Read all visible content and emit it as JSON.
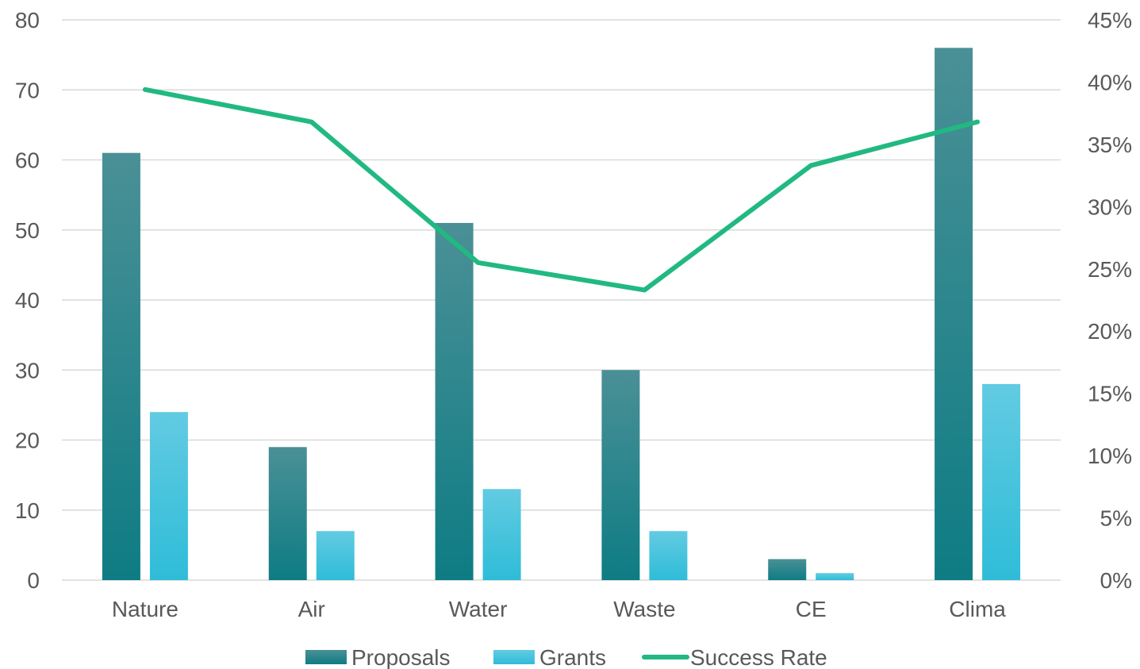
{
  "chart_data": {
    "type": "bar",
    "categories": [
      "Nature",
      "Air",
      "Water",
      "Waste",
      "CE",
      "Clima"
    ],
    "series": [
      {
        "name": "Proposals",
        "type": "bar",
        "axis": "left",
        "values": [
          61,
          19,
          51,
          30,
          3,
          76
        ]
      },
      {
        "name": "Grants",
        "type": "bar",
        "axis": "left",
        "values": [
          24,
          7,
          13,
          7,
          1,
          28
        ]
      },
      {
        "name": "Success Rate",
        "type": "line",
        "axis": "right",
        "values": [
          0.394,
          0.368,
          0.255,
          0.233,
          0.333,
          0.368
        ]
      }
    ],
    "y_left": {
      "min": 0,
      "max": 80,
      "step": 10,
      "ticks": [
        "0",
        "10",
        "20",
        "30",
        "40",
        "50",
        "60",
        "70",
        "80"
      ]
    },
    "y_right": {
      "min": 0,
      "max": 0.45,
      "step": 0.05,
      "ticks": [
        "0%",
        "5%",
        "10%",
        "15%",
        "20%",
        "25%",
        "30%",
        "35%",
        "40%",
        "45%"
      ]
    },
    "grid": true,
    "legend_position": "bottom",
    "colors": {
      "proposals_top": "#4a9096",
      "proposals_bottom": "#0e7c84",
      "grants_top": "#62cbe2",
      "grants_bottom": "#2fbcd8",
      "success_rate": "#21b981",
      "grid": "#d9d9d9",
      "text": "#595959"
    }
  }
}
